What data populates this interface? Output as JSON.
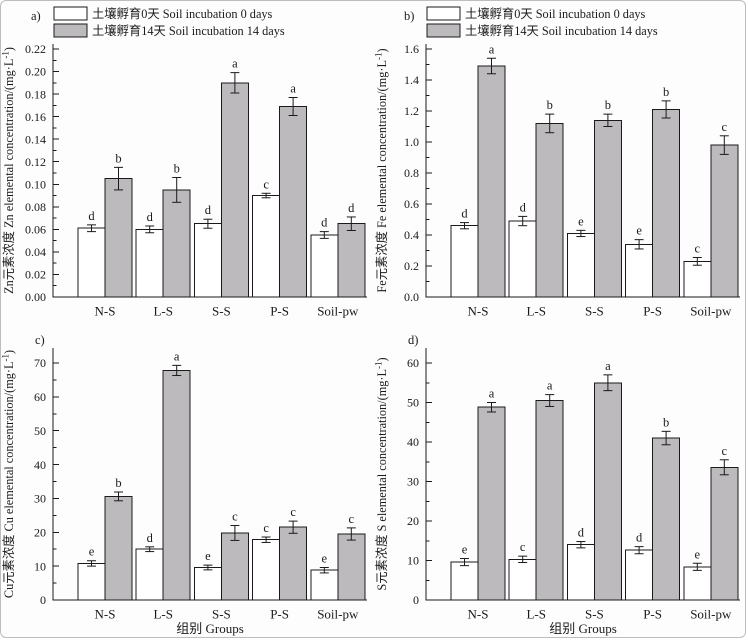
{
  "figure": {
    "categories": [
      "N-S",
      "L-S",
      "S-S",
      "P-S",
      "Soil-pw"
    ],
    "xlabel": "组别 Groups",
    "legend": [
      {
        "label": "土壤孵育0天 Soil incubation 0 days",
        "fill": "#ffffff"
      },
      {
        "label": "土壤孵育14天 Soil incubation 14 days",
        "fill": "#bdbabd"
      }
    ],
    "colors": {
      "bar_fill_0_days": "#ffffff",
      "bar_fill_14_days": "#bdbabd",
      "axis": "#1a1a1a",
      "background": "#fdfdfd",
      "frame_border": "#bdbdbd"
    }
  },
  "chart_data": [
    {
      "panel": "a)",
      "type": "bar",
      "element": "Zn",
      "ylabel_cn": "Zn元素浓度",
      "ylabel_en": "Zn elemental concentration",
      "unit": {
        "pre": "/(mg·L",
        "sup": "-1",
        "post": ")"
      },
      "ylim": [
        0,
        0.22
      ],
      "ytick_max": 0.22,
      "ystep": 0.02,
      "decimals": 2,
      "grid": false,
      "legend_position": "top",
      "show_legend": true,
      "show_xlabel": false,
      "categories": [
        "N-S",
        "L-S",
        "S-S",
        "P-S",
        "Soil-pw"
      ],
      "series": [
        {
          "name": "土壤孵育0天 Soil incubation 0 days",
          "fill": "#ffffff",
          "values": [
            0.061,
            0.06,
            0.065,
            0.09,
            0.055
          ],
          "errors": [
            0.003,
            0.003,
            0.004,
            0.002,
            0.003
          ],
          "letters": [
            "d",
            "d",
            "d",
            "c",
            "d"
          ]
        },
        {
          "name": "土壤孵育14天 Soil incubation 14 days",
          "fill": "#bdbabd",
          "values": [
            0.105,
            0.095,
            0.19,
            0.169,
            0.065
          ],
          "errors": [
            0.01,
            0.011,
            0.009,
            0.008,
            0.006
          ],
          "letters": [
            "b",
            "b",
            "a",
            "a",
            "d"
          ]
        }
      ]
    },
    {
      "panel": "b)",
      "type": "bar",
      "element": "Fe",
      "ylabel_cn": "Fe元素浓度",
      "ylabel_en": "Fe elemental concentration",
      "unit": {
        "pre": "/(mg·L",
        "sup": "-1",
        "post": ")"
      },
      "ylim": [
        0,
        1.6
      ],
      "ytick_max": 1.6,
      "ystep": 0.2,
      "decimals": 1,
      "grid": false,
      "legend_position": "top",
      "show_legend": true,
      "show_xlabel": false,
      "categories": [
        "N-S",
        "L-S",
        "S-S",
        "P-S",
        "Soil-pw"
      ],
      "series": [
        {
          "name": "土壤孵育0天 Soil incubation 0 days",
          "fill": "#ffffff",
          "values": [
            0.46,
            0.49,
            0.41,
            0.34,
            0.23
          ],
          "errors": [
            0.02,
            0.03,
            0.02,
            0.03,
            0.025
          ],
          "letters": [
            "d",
            "d",
            "e",
            "e",
            "c"
          ]
        },
        {
          "name": "土壤孵育14天 Soil incubation 14 days",
          "fill": "#bdbabd",
          "values": [
            1.49,
            1.12,
            1.14,
            1.21,
            0.98
          ],
          "errors": [
            0.05,
            0.06,
            0.04,
            0.055,
            0.06
          ],
          "letters": [
            "a",
            "b",
            "b",
            "b",
            "c"
          ]
        }
      ]
    },
    {
      "panel": "c)",
      "type": "bar",
      "element": "Cu",
      "ylabel_cn": "Cu元素浓度",
      "ylabel_en": "Cu elemental concentration",
      "unit": {
        "pre": "/(mg·L",
        "sup": "-1",
        "post": ")"
      },
      "ylim": [
        0,
        70
      ],
      "ytick_max": 70,
      "ystep": 10,
      "decimals": 0,
      "grid": false,
      "legend_position": "none",
      "show_legend": false,
      "show_xlabel": true,
      "categories": [
        "N-S",
        "L-S",
        "S-S",
        "P-S",
        "Soil-pw"
      ],
      "series": [
        {
          "name": "土壤孵育0天 Soil incubation 0 days",
          "fill": "#ffffff",
          "values": [
            10.8,
            15.0,
            9.6,
            17.8,
            8.8
          ],
          "errors": [
            0.8,
            0.7,
            0.7,
            0.8,
            0.8
          ],
          "letters": [
            "e",
            "d",
            "e",
            "c",
            "e"
          ]
        },
        {
          "name": "土壤孵育14天 Soil incubation 14 days",
          "fill": "#bdbabd",
          "values": [
            30.6,
            67.8,
            19.8,
            21.5,
            19.5
          ],
          "errors": [
            1.3,
            1.5,
            2.2,
            1.8,
            1.8
          ],
          "letters": [
            "b",
            "a",
            "c",
            "c",
            "c"
          ]
        }
      ]
    },
    {
      "panel": "d)",
      "type": "bar",
      "element": "S",
      "ylabel_cn": "S元素浓度",
      "ylabel_en": "S elemental concentration",
      "unit": {
        "pre": "/(mg·L",
        "sup": "-1",
        "post": ")"
      },
      "ylim": [
        0,
        60
      ],
      "ytick_max": 60,
      "ystep": 10,
      "decimals": 0,
      "grid": false,
      "legend_position": "none",
      "show_legend": false,
      "show_xlabel": true,
      "categories": [
        "N-S",
        "L-S",
        "S-S",
        "P-S",
        "Soil-pw"
      ],
      "series": [
        {
          "name": "土壤孵育0天 Soil incubation 0 days",
          "fill": "#ffffff",
          "values": [
            9.6,
            10.3,
            14.0,
            12.6,
            8.4
          ],
          "errors": [
            0.9,
            0.8,
            0.8,
            0.9,
            0.9
          ],
          "letters": [
            "e",
            "c",
            "d",
            "d",
            "e"
          ]
        },
        {
          "name": "土壤孵育14天 Soil incubation 14 days",
          "fill": "#bdbabd",
          "values": [
            48.8,
            50.5,
            55.0,
            41.0,
            33.6
          ],
          "errors": [
            1.2,
            1.5,
            2.0,
            1.7,
            1.9
          ],
          "letters": [
            "a",
            "a",
            "a",
            "b",
            "c"
          ]
        }
      ]
    }
  ]
}
